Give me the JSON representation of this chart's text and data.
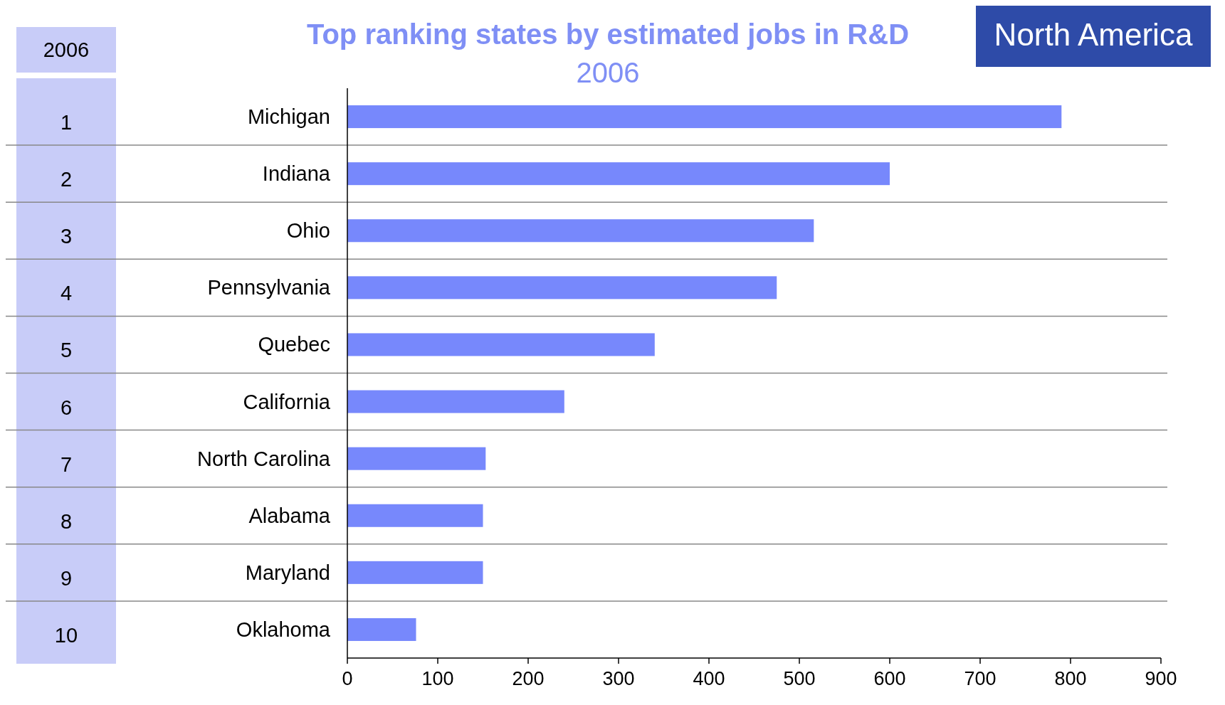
{
  "chart_data": {
    "type": "bar",
    "orientation": "horizontal",
    "title": "Top ranking states by estimated jobs in R&D",
    "subtitle": "2006",
    "categories": [
      "Michigan",
      "Indiana",
      "Ohio",
      "Pennsylvania",
      "Quebec",
      "California",
      "North Carolina",
      "Alabama",
      "Maryland",
      "Oklahoma"
    ],
    "values": [
      790,
      600,
      516,
      475,
      340,
      240,
      153,
      150,
      150,
      76
    ],
    "color": "#7788fc",
    "xlim": [
      0,
      900
    ],
    "xticks": [
      0,
      100,
      200,
      300,
      400,
      500,
      600,
      700,
      800,
      900
    ],
    "grid": "y",
    "annotations": [
      "North America",
      "2006",
      "1",
      "2",
      "3",
      "4",
      "5",
      "6",
      "7",
      "8",
      "9",
      "10"
    ]
  }
}
